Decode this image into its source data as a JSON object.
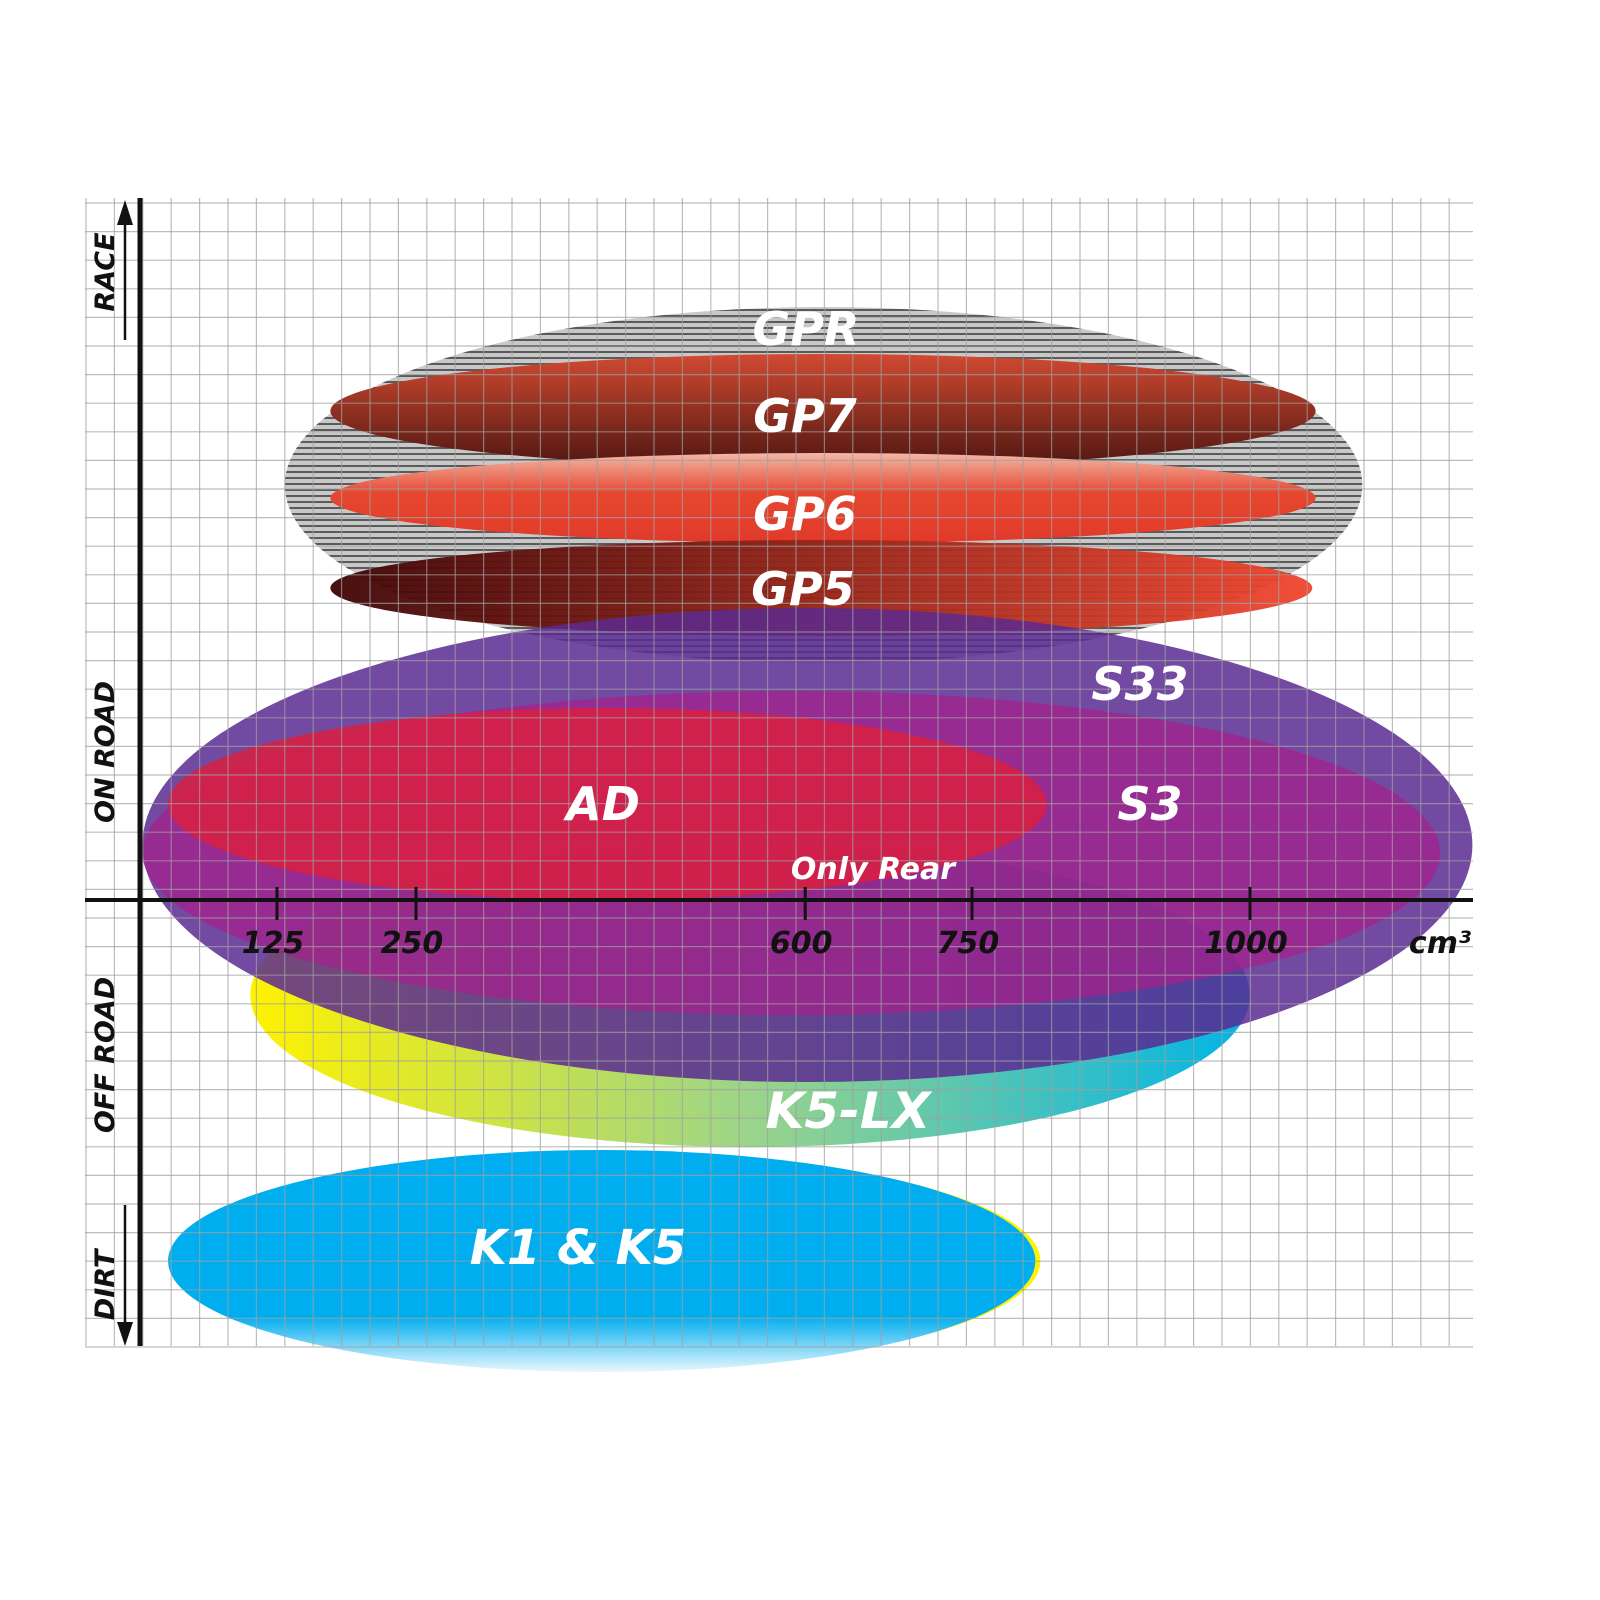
{
  "chart_data": {
    "type": "range-ellipse",
    "x_unit": "cm³",
    "x_ticks": [
      125,
      250,
      600,
      750,
      1000
    ],
    "xlim": [
      0,
      1200
    ],
    "y_categories": [
      "RACE",
      "ON ROAD",
      "OFF ROAD",
      "DIRT"
    ],
    "grid": true,
    "products": [
      {
        "name": "GPR",
        "cc_range": [
          132,
          1101
        ],
        "band": "RACE",
        "color": "#9a9a9a",
        "fill": "striped"
      },
      {
        "name": "GP7",
        "cc_range": [
          173,
          1059
        ],
        "band": "RACE",
        "color": "#b8402c"
      },
      {
        "name": "GP6",
        "cc_range": [
          173,
          1059
        ],
        "band": "RACE",
        "color": "#e4472f"
      },
      {
        "name": "GP5",
        "cc_range": [
          173,
          1056
        ],
        "band": "RACE / ON ROAD",
        "color": "#c02a1e"
      },
      {
        "name": "S33",
        "cc_range": [
          4,
          1200
        ],
        "band": "ON ROAD",
        "color": "#5b2a90"
      },
      {
        "name": "S3",
        "cc_range": [
          4,
          1171
        ],
        "band": "ON ROAD",
        "color": "#a3228c"
      },
      {
        "name": "AD",
        "cc_range": [
          27,
          817
        ],
        "band": "ON ROAD",
        "color": "#d91f3f"
      },
      {
        "name": "K5-LX",
        "cc_range": [
          101,
          1000
        ],
        "band": "OFF ROAD",
        "color": "#20b8d8"
      },
      {
        "name": "K1 & K5",
        "cc_range": [
          27,
          807
        ],
        "band": "DIRT",
        "color": "#00aeef"
      }
    ],
    "annotations": [
      "Only Rear"
    ]
  }
}
